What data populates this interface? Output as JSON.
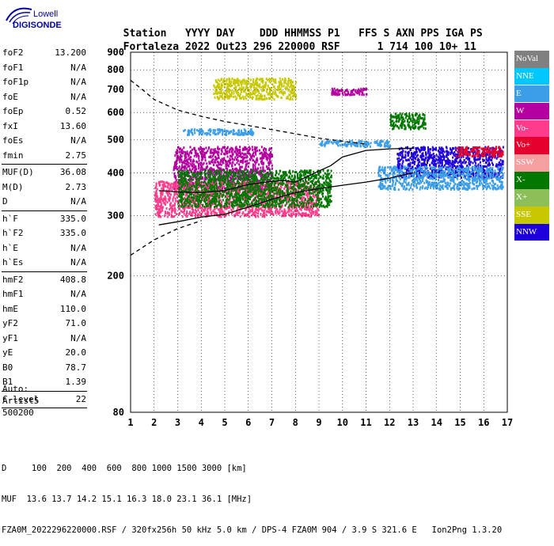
{
  "logo": {
    "line1": "Lowell",
    "line2": "DIGISONDE"
  },
  "header": {
    "labels": [
      "Station",
      "YYYY",
      "DAY",
      "DDD",
      "HHMMSS",
      "P1",
      "FFS",
      "S",
      "AXN",
      "PPS",
      "IGA",
      "PS"
    ],
    "values": [
      "Fortaleza",
      "2022",
      "Out23",
      "296",
      "220000",
      "RSF",
      "1",
      "714",
      "100",
      "10+",
      "11"
    ]
  },
  "params": [
    {
      "k": "foF2",
      "v": "13.200"
    },
    {
      "k": "foF1",
      "v": "N/A"
    },
    {
      "k": "foF1p",
      "v": "N/A"
    },
    {
      "k": "foE",
      "v": "N/A"
    },
    {
      "k": "foEp",
      "v": "0.52"
    },
    {
      "k": "fxI",
      "v": "13.60"
    },
    {
      "k": "foEs",
      "v": "N/A"
    },
    {
      "k": "fmin",
      "v": "2.75"
    },
    {
      "sep": true
    },
    {
      "k": "MUF(D)",
      "v": "36.08"
    },
    {
      "k": "M(D)",
      "v": "2.73"
    },
    {
      "k": "D",
      "v": "N/A"
    },
    {
      "sep": true
    },
    {
      "k": "h`F",
      "v": "335.0"
    },
    {
      "k": "h`F2",
      "v": "335.0"
    },
    {
      "k": "h`E",
      "v": "N/A"
    },
    {
      "k": "h`Es",
      "v": "N/A"
    },
    {
      "sep": true
    },
    {
      "k": "hmF2",
      "v": "408.8"
    },
    {
      "k": "hmF1",
      "v": "N/A"
    },
    {
      "k": "hmE",
      "v": "110.0"
    },
    {
      "k": "yF2",
      "v": "71.0"
    },
    {
      "k": "yF1",
      "v": "N/A"
    },
    {
      "k": "yE",
      "v": "20.0"
    },
    {
      "k": "B0",
      "v": "78.7"
    },
    {
      "k": "B1",
      "v": "1.39"
    },
    {
      "sep": true
    },
    {
      "k": "C-level",
      "v": "22"
    },
    {
      "sep": true
    }
  ],
  "auto": {
    "line1": "Auto:",
    "line2": "Artist5",
    "line3": "500200"
  },
  "legend": [
    {
      "label": "NoVal",
      "color": "#808080"
    },
    {
      "label": "NNE",
      "color": "#00c8ff"
    },
    {
      "label": "E",
      "color": "#3c9ee6"
    },
    {
      "label": "W",
      "color": "#b400a0"
    },
    {
      "label": "Vo-",
      "color": "#ff3c8c"
    },
    {
      "label": "Vo+",
      "color": "#e6002d"
    },
    {
      "label": "SSW",
      "color": "#f5a0a0"
    },
    {
      "label": "X-",
      "color": "#007800"
    },
    {
      "label": "X+",
      "color": "#8cbe5a"
    },
    {
      "label": "SSE",
      "color": "#c8c800"
    },
    {
      "label": "NNW",
      "color": "#1e00dc"
    }
  ],
  "chart_data": {
    "type": "scatter",
    "title": "",
    "xlabel": "",
    "ylabel": "",
    "xlim": [
      1,
      17
    ],
    "ylim": [
      80,
      900
    ],
    "y_scale": "log",
    "x_ticks": [
      1,
      2,
      3,
      4,
      5,
      6,
      7,
      8,
      9,
      10,
      11,
      12,
      13,
      14,
      15,
      16,
      17
    ],
    "y_ticks": [
      80,
      200,
      300,
      400,
      500,
      600,
      700,
      800,
      900
    ],
    "grid": true,
    "grid_style": "dotted",
    "clusters": [
      {
        "name": "W",
        "color": "#b400a0",
        "x": [
          2.8,
          7.0
        ],
        "y": [
          360,
          480
        ]
      },
      {
        "name": "E",
        "color": "#3c9ee6",
        "x": [
          3.2,
          6.2
        ],
        "y": [
          520,
          540
        ]
      },
      {
        "name": "E",
        "color": "#3c9ee6",
        "x": [
          9.0,
          12.0
        ],
        "y": [
          480,
          500
        ]
      },
      {
        "name": "SSE",
        "color": "#c8c800",
        "x": [
          4.5,
          8.0
        ],
        "y": [
          660,
          760
        ]
      },
      {
        "name": "Vo-",
        "color": "#ff3c8c",
        "x": [
          2.0,
          9.0
        ],
        "y": [
          300,
          380
        ]
      },
      {
        "name": "X-",
        "color": "#007800",
        "x": [
          3.0,
          9.5
        ],
        "y": [
          320,
          410
        ]
      },
      {
        "name": "NNW",
        "color": "#1e00dc",
        "x": [
          12.3,
          16.8
        ],
        "y": [
          390,
          480
        ]
      },
      {
        "name": "E",
        "color": "#3c9ee6",
        "x": [
          11.5,
          16.8
        ],
        "y": [
          360,
          420
        ]
      },
      {
        "name": "Vo+",
        "color": "#e6002d",
        "x": [
          14.8,
          16.8
        ],
        "y": [
          450,
          480
        ]
      },
      {
        "name": "X-",
        "color": "#007800",
        "x": [
          12.0,
          13.5
        ],
        "y": [
          540,
          600
        ]
      },
      {
        "name": "W",
        "color": "#b400a0",
        "x": [
          9.5,
          11.0
        ],
        "y": [
          680,
          710
        ]
      }
    ],
    "profile_curve": {
      "x": [
        2.2,
        3.0,
        4.0,
        5.0,
        6.0,
        7.0,
        7.5,
        8.0,
        8.5,
        9.0,
        9.5,
        10.0,
        11.0,
        12.0,
        13.0
      ],
      "y": [
        355,
        352,
        350,
        355,
        370,
        378,
        380,
        376,
        390,
        405,
        420,
        445,
        465,
        470,
        472
      ]
    },
    "upper_dashed": {
      "x": [
        1.0,
        1.5,
        2.0,
        3.0,
        4.0,
        5.0,
        6.0,
        7.0,
        8.0,
        9.0,
        10.0,
        11.0
      ],
      "y": [
        745,
        700,
        655,
        610,
        585,
        565,
        550,
        535,
        520,
        505,
        495,
        485
      ]
    },
    "lower_dashed": {
      "x": [
        1.0,
        2.0,
        3.0,
        4.0
      ],
      "y": [
        230,
        255,
        275,
        290
      ]
    },
    "lower_solid": {
      "x": [
        2.2,
        3.0,
        4.0,
        5.0,
        6.0,
        7.0,
        8.0,
        9.0,
        10.0,
        11.0,
        12.0,
        13.0
      ],
      "y": [
        282,
        288,
        297,
        303,
        318,
        335,
        350,
        360,
        368,
        376,
        386,
        400
      ]
    }
  },
  "footer": {
    "line1": "D     100  200  400  600  800 1000 1500 3000 [km]",
    "line2": "MUF  13.6 13.7 14.2 15.1 16.3 18.0 23.1 36.1 [MHz]",
    "line3": "FZA0M_2022296220000.RSF / 320fx256h 50 kHz 5.0 km / DPS-4 FZA0M 904 / 3.9 S 321.6 E   Ion2Png 1.3.20"
  }
}
